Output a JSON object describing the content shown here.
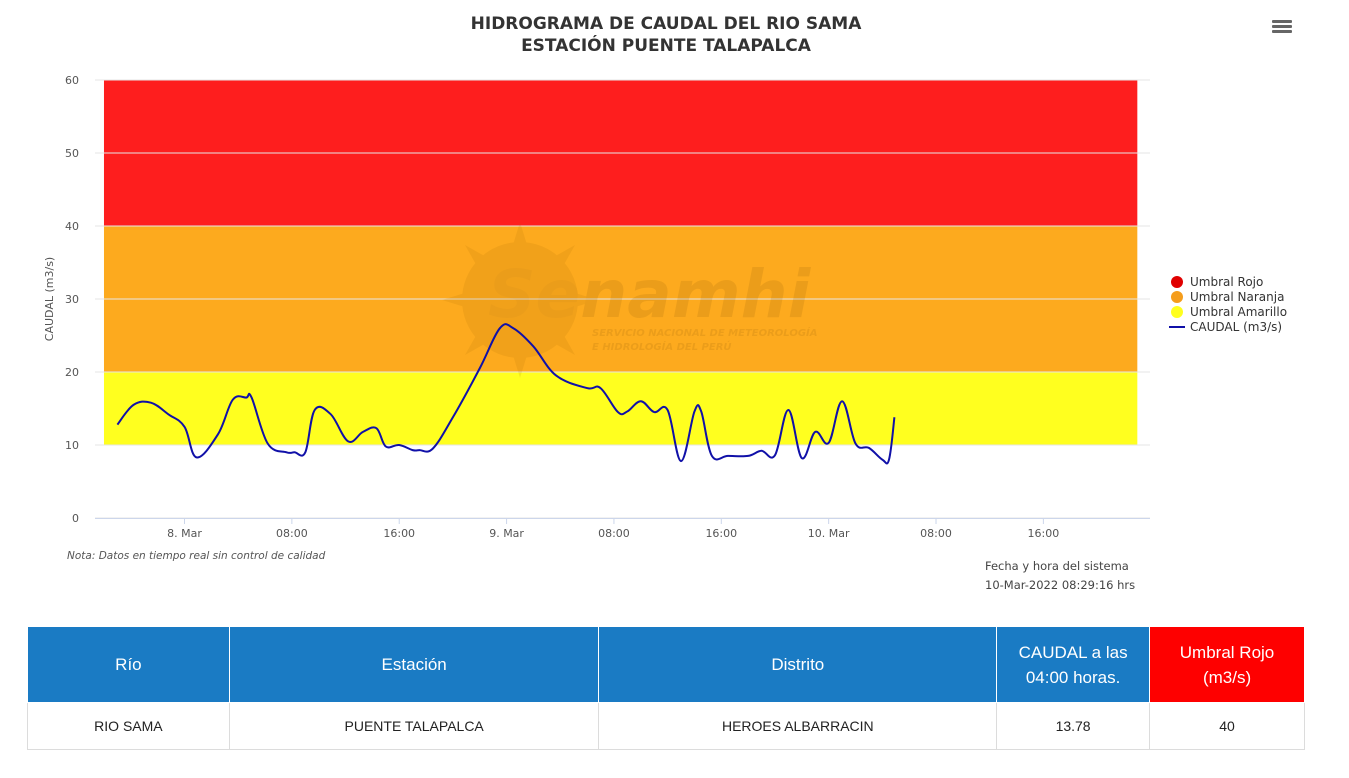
{
  "chart_data": {
    "type": "line",
    "title": "HIDROGRAMA DE CAUDAL DEL RIO SAMA",
    "subtitle": "ESTACIÓN PUENTE TALAPALCA",
    "ylabel": "CAUDAL (m3/s)",
    "xlabel": "",
    "ylim": [
      0,
      60
    ],
    "yticks": [
      0,
      10,
      20,
      30,
      40,
      50,
      60
    ],
    "x_unit": "hours",
    "xlim": [
      -5,
      65
    ],
    "xticks": [
      {
        "x": 0,
        "label": "8. Mar"
      },
      {
        "x": 8,
        "label": "08:00"
      },
      {
        "x": 16,
        "label": "16:00"
      },
      {
        "x": 24,
        "label": "9. Mar"
      },
      {
        "x": 32,
        "label": "08:00"
      },
      {
        "x": 40,
        "label": "16:00"
      },
      {
        "x": 48,
        "label": "10. Mar"
      },
      {
        "x": 56,
        "label": "08:00"
      },
      {
        "x": 64,
        "label": "16:00"
      }
    ],
    "bands": [
      {
        "name": "Umbral Amarillo",
        "from": 10,
        "to": 20,
        "color": "#ffff1f",
        "x_from": -6,
        "x_to": 71
      },
      {
        "name": "Umbral Naranja",
        "from": 20,
        "to": 40,
        "color": "#fdaa1e",
        "x_from": -6,
        "x_to": 71
      },
      {
        "name": "Umbral Rojo",
        "from": 40,
        "to": 60,
        "color": "#fe1e1e",
        "x_from": -6,
        "x_to": 71
      }
    ],
    "grid": true,
    "legend_position": "right",
    "series": [
      {
        "name": "CAUDAL (m3/s)",
        "color": "#1010a8",
        "x": [
          -5,
          -3.8,
          -2.5,
          -1.2,
          0,
          0.9,
          2.5,
          3.6,
          4.6,
          5,
          6.2,
          7.6,
          8.2,
          9,
          9.7,
          10.9,
          12.2,
          13.3,
          14.3,
          15,
          16,
          17,
          17.5,
          18.5,
          20,
          22,
          23.5,
          24.5,
          26,
          27.7,
          30,
          31,
          32.3,
          33,
          34,
          35,
          36,
          37,
          38,
          38.5,
          39.3,
          40.5,
          42,
          43,
          44,
          45,
          46,
          47,
          48,
          49,
          50,
          51,
          52,
          52.5,
          52.9
        ],
        "values": [
          12.8,
          15.5,
          15.8,
          14.2,
          12.5,
          8.3,
          11.5,
          16.2,
          16.5,
          16.5,
          10.2,
          9.0,
          9.0,
          9.0,
          14.8,
          14.2,
          10.5,
          11.8,
          12.3,
          9.8,
          10.0,
          9.3,
          9.3,
          9.5,
          13.8,
          20.5,
          26.0,
          26.0,
          23.5,
          19.5,
          17.8,
          17.8,
          14.5,
          14.6,
          16.0,
          14.5,
          14.8,
          7.8,
          14.6,
          14.6,
          8.5,
          8.5,
          8.5,
          9.2,
          8.6,
          14.8,
          8.2,
          11.8,
          10.3,
          16.0,
          10.2,
          9.6,
          8.0,
          8.0,
          13.8
        ]
      }
    ],
    "legend": [
      {
        "label": "Umbral Rojo",
        "color": "#e00000",
        "symbol": "dot"
      },
      {
        "label": "Umbral Naranja",
        "color": "#f59d1c",
        "symbol": "dot"
      },
      {
        "label": "Umbral Amarillo",
        "color": "#ffff1f",
        "symbol": "dot"
      },
      {
        "label": "CAUDAL (m3/s)",
        "color": "#1010a8",
        "symbol": "line"
      }
    ]
  },
  "watermark": {
    "brand": "Senamhi",
    "line1": "SERVICIO NACIONAL DE METEOROLOGÍA",
    "line2": "E HIDROLOGÍA DEL PERÚ"
  },
  "note": "Nota: Datos en tiempo real sin control de calidad",
  "system_time": {
    "label": "Fecha y hora del sistema",
    "value": "10-Mar-2022 08:29:16 hrs"
  },
  "menu_icon": "hamburger-menu-icon",
  "table": {
    "headers": {
      "rio": "Río",
      "estacion": "Estación",
      "distrito": "Distrito",
      "caudal_line1": "CAUDAL a las",
      "caudal_line2": "04:00 horas.",
      "umbral_line1": "Umbral Rojo",
      "umbral_line2": "(m3/s)"
    },
    "row": {
      "rio": "RIO SAMA",
      "estacion": "PUENTE TALAPALCA",
      "distrito": "HEROES ALBARRACIN",
      "caudal": "13.78",
      "umbral": "40"
    }
  }
}
